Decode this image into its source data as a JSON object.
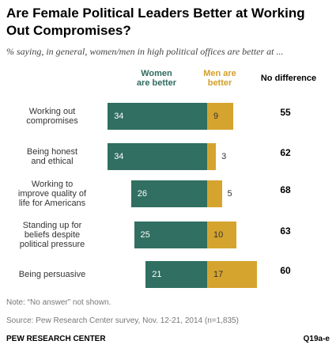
{
  "title": "Are Female Political Leaders Better at Working Out Compromises?",
  "subtitle": "% saying, in general, women/men in high political offices are better at ...",
  "legend": {
    "women": "Women\nare better",
    "men": "Men are\nbetter",
    "no_difference": "No difference"
  },
  "colors": {
    "women": "#306f61",
    "men": "#d5a42e"
  },
  "chart_data": {
    "type": "bar",
    "orientation": "horizontal",
    "stacked": true,
    "categories": [
      "Working out\ncompromises",
      "Being honest\nand ethical",
      "Working to\nimprove quality of\nlife for Americans",
      "Standing up for\nbeliefs despite\npolitical pressure",
      "Being persuasive"
    ],
    "series": [
      {
        "name": "Women\nare better",
        "values": [
          34,
          34,
          26,
          25,
          21
        ]
      },
      {
        "name": "Men are\nbetter",
        "values": [
          9,
          3,
          5,
          10,
          17
        ]
      },
      {
        "name": "No difference",
        "values": [
          55,
          62,
          68,
          63,
          60
        ]
      }
    ]
  },
  "notes": {
    "note": "Note: “No answer” not shown.",
    "source": "Source: Pew Research Center survey, Nov. 12-21, 2014 (n=1,835)"
  },
  "footer": "PEW RESEARCH CENTER",
  "code": "Q19a-e"
}
